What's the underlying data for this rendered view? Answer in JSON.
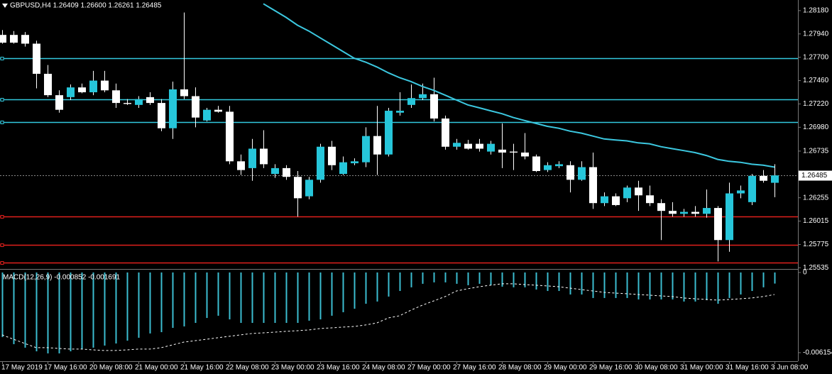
{
  "chart_data": [
    {
      "type": "candlestick",
      "title": "GBPUSD,H4  1.26409 1.26600 1.26261 1.26485",
      "categories": [
        "17 May 2019",
        null,
        null,
        null,
        "17 May 16:00",
        null,
        null,
        null,
        "20 May 08:00",
        null,
        null,
        null,
        "21 May 00:00",
        null,
        null,
        null,
        "21 May 16:00",
        null,
        null,
        null,
        "22 May 08:00",
        null,
        null,
        null,
        "23 May 00:00",
        null,
        null,
        null,
        "23 May 16:00",
        null,
        null,
        null,
        "24 May 08:00",
        null,
        null,
        null,
        "27 May 00:00",
        null,
        null,
        null,
        "27 May 16:00",
        null,
        null,
        null,
        "28 May 08:00",
        null,
        null,
        null,
        "29 May 00:00",
        null,
        null,
        null,
        "29 May 16:00",
        null,
        null,
        null,
        "30 May 08:00",
        null,
        null,
        null,
        "31 May 00:00",
        null,
        null,
        null,
        "31 May 16:00",
        null,
        null,
        null,
        "3 Jun 08:00"
      ],
      "open": [
        1.2793,
        1.2793,
        1.2793,
        1.2784,
        1.2753,
        1.2731,
        1.2729,
        1.2739,
        1.2734,
        1.2746,
        1.2736,
        1.2723,
        1.2721,
        1.2729,
        1.2723,
        1.2697,
        1.2737,
        1.273,
        1.2705,
        1.2716,
        1.2714,
        1.2663,
        1.2656,
        1.2676,
        1.265,
        1.2656,
        1.2647,
        1.2627,
        1.2644,
        1.2678,
        1.265,
        1.2661,
        1.2662,
        1.2689,
        1.267,
        1.2713,
        1.2721,
        1.2728,
        1.2732,
        1.2707,
        1.2678,
        1.2681,
        1.2681,
        1.2673,
        1.2675,
        1.2673,
        1.2672,
        1.2668,
        1.2654,
        1.2658,
        1.2659,
        1.2644,
        1.2657,
        1.262,
        1.2627,
        1.2625,
        1.2636,
        1.2628,
        1.262,
        1.2612,
        1.2609,
        1.2611,
        1.2609,
        1.2615,
        1.2582,
        1.263,
        1.2621,
        1.2648,
        1.26409
      ],
      "high": [
        1.2798,
        1.2797,
        1.2796,
        1.2787,
        1.2762,
        1.2736,
        1.2742,
        1.2743,
        1.2756,
        1.2756,
        1.2743,
        1.2727,
        1.273,
        1.2734,
        1.2727,
        1.2745,
        1.2816,
        1.2739,
        1.2718,
        1.272,
        1.272,
        1.267,
        1.2686,
        1.2695,
        1.266,
        1.2659,
        1.2653,
        1.2647,
        1.2681,
        1.2684,
        1.2668,
        1.2666,
        1.2698,
        1.272,
        1.2718,
        1.2734,
        1.2742,
        1.2743,
        1.2749,
        1.271,
        1.2686,
        1.2685,
        1.2686,
        1.2684,
        1.2702,
        1.2681,
        1.2692,
        1.267,
        1.2662,
        1.2663,
        1.2663,
        1.2663,
        1.2672,
        1.2631,
        1.263,
        1.2638,
        1.2643,
        1.2638,
        1.2624,
        1.2621,
        1.2614,
        1.2617,
        1.2634,
        1.2617,
        1.2641,
        1.2638,
        1.265,
        1.2654,
        1.266
      ],
      "low": [
        1.2784,
        1.2784,
        1.2781,
        1.2738,
        1.2729,
        1.2713,
        1.2726,
        1.2733,
        1.2731,
        1.2734,
        1.2718,
        1.2721,
        1.2718,
        1.2721,
        1.2694,
        1.2686,
        1.2727,
        1.2698,
        1.2704,
        1.2713,
        1.266,
        1.2649,
        1.2643,
        1.2656,
        1.2646,
        1.2644,
        1.2606,
        1.2624,
        1.2641,
        1.2654,
        1.2649,
        1.2659,
        1.2657,
        1.2649,
        1.2668,
        1.271,
        1.2718,
        1.2726,
        1.2704,
        1.2675,
        1.2675,
        1.2675,
        1.2673,
        1.267,
        1.2656,
        1.2654,
        1.2665,
        1.2652,
        1.2652,
        1.2656,
        1.2631,
        1.2643,
        1.2614,
        1.2617,
        1.2617,
        1.2621,
        1.2612,
        1.2617,
        1.2582,
        1.2606,
        1.2606,
        1.2606,
        1.2605,
        1.256,
        1.257,
        1.2625,
        1.2618,
        1.2641,
        1.26261
      ],
      "close": [
        1.2785,
        1.2785,
        1.2784,
        1.2753,
        1.2731,
        1.2716,
        1.2739,
        1.2734,
        1.2746,
        1.2736,
        1.2723,
        1.2722,
        1.2727,
        1.2723,
        1.2697,
        1.2737,
        1.273,
        1.2708,
        1.2716,
        1.2714,
        1.2663,
        1.2654,
        1.2676,
        1.266,
        1.2656,
        1.2647,
        1.2625,
        1.2644,
        1.2678,
        1.2659,
        1.2662,
        1.2663,
        1.2689,
        1.267,
        1.2715,
        1.2715,
        1.2728,
        1.2732,
        1.2707,
        1.2678,
        1.2682,
        1.2676,
        1.2676,
        1.2681,
        1.2672,
        1.2672,
        1.2668,
        1.2653,
        1.2659,
        1.266,
        1.2644,
        1.2657,
        1.262,
        1.2627,
        1.2618,
        1.2636,
        1.2628,
        1.262,
        1.2612,
        1.2609,
        1.2611,
        1.2609,
        1.2615,
        1.2582,
        1.263,
        1.2633,
        1.2648,
        1.2643,
        1.26485
      ],
      "up_color": "#26c6da",
      "down_color": "#ffffff",
      "wick_color": "#ffffff",
      "moving_average": {
        "color": "#3cc8e0",
        "values": [
          null,
          null,
          null,
          null,
          null,
          null,
          null,
          null,
          null,
          null,
          null,
          null,
          null,
          null,
          null,
          null,
          null,
          null,
          null,
          null,
          null,
          null,
          null,
          1.2825,
          1.2818,
          1.2811,
          1.2803,
          1.2797,
          1.279,
          1.2783,
          1.2776,
          1.2769,
          1.2765,
          1.276,
          1.2754,
          1.2749,
          1.2745,
          1.274,
          1.2736,
          1.2731,
          1.2726,
          1.2721,
          1.2718,
          1.2715,
          1.2712,
          1.2708,
          1.2705,
          1.2702,
          1.2699,
          1.2697,
          1.2694,
          1.2692,
          1.2689,
          1.2686,
          1.2685,
          1.2684,
          1.2682,
          1.2681,
          1.2678,
          1.2676,
          1.2674,
          1.2672,
          1.2669,
          1.2665,
          1.2663,
          1.2662,
          1.266,
          1.2659,
          1.2657
        ]
      },
      "levels": [
        {
          "value": 1.2769,
          "color": "#33c9dd"
        },
        {
          "value": 1.2727,
          "color": "#33c9dd"
        },
        {
          "value": 1.2703,
          "color": "#33c9dd"
        },
        {
          "value": 1.2606,
          "color": "#e0201c"
        },
        {
          "value": 1.2577,
          "color": "#e0201c"
        },
        {
          "value": 1.2559,
          "color": "#e0201c"
        }
      ],
      "last_price": 1.26485,
      "ylim": [
        1.2553,
        1.28289
      ],
      "yticks": [
        {
          "value": 1.2818,
          "label": "1.28180"
        },
        {
          "value": 1.2794,
          "label": "1.27940"
        },
        {
          "value": 1.277,
          "label": "1.27700"
        },
        {
          "value": 1.2746,
          "label": "1.27460"
        },
        {
          "value": 1.2722,
          "label": "1.27220"
        },
        {
          "value": 1.2698,
          "label": "1.26980"
        },
        {
          "value": 1.26735,
          "label": "1.26735"
        },
        {
          "value": 1.26255,
          "label": "1.26255"
        },
        {
          "value": 1.26015,
          "label": "1.26015"
        },
        {
          "value": 1.25775,
          "label": "1.25775"
        },
        {
          "value": 1.25535,
          "label": "1.25535"
        }
      ]
    },
    {
      "type": "macd",
      "title": "MACD(12,26,9) -0.000852 -0.001691",
      "histogram": {
        "color": "#3bbdd0",
        "values": [
          -0.00496,
          -0.0055,
          -0.00577,
          -0.00605,
          -0.00621,
          -0.00621,
          -0.00605,
          -0.00588,
          -0.00577,
          -0.00561,
          -0.00545,
          -0.00523,
          -0.00501,
          -0.00468,
          -0.00458,
          -0.00425,
          -0.00414,
          -0.00387,
          -0.00349,
          -0.00332,
          -0.0036,
          -0.00387,
          -0.00387,
          -0.00387,
          -0.00387,
          -0.00387,
          -0.00387,
          -0.0037,
          -0.0036,
          -0.00332,
          -0.00305,
          -0.00278,
          -0.0024,
          -0.00223,
          -0.00185,
          -0.00142,
          -0.00114,
          -0.00087,
          -0.00076,
          -0.00076,
          -0.00087,
          -0.00098,
          -0.00087,
          -0.00098,
          -0.00109,
          -0.00114,
          -0.00114,
          -0.00131,
          -0.00142,
          -0.00142,
          -0.00169,
          -0.00169,
          -0.00196,
          -0.00196,
          -0.00196,
          -0.00196,
          -0.00207,
          -0.00207,
          -0.00207,
          -0.00207,
          -0.00223,
          -0.00223,
          -0.00212,
          -0.0024,
          -0.00196,
          -0.00169,
          -0.00142,
          -0.00114,
          -0.000852
        ]
      },
      "signal": {
        "color": "#ffffff",
        "values": [
          -0.00479,
          -0.00512,
          -0.00545,
          -0.00577,
          -0.00577,
          -0.00583,
          -0.00588,
          -0.00588,
          -0.00594,
          -0.00599,
          -0.00599,
          -0.00594,
          -0.00588,
          -0.00588,
          -0.00577,
          -0.00556,
          -0.00534,
          -0.00523,
          -0.00512,
          -0.00501,
          -0.0049,
          -0.00479,
          -0.00468,
          -0.00463,
          -0.00458,
          -0.00452,
          -0.00447,
          -0.00441,
          -0.0043,
          -0.00425,
          -0.00419,
          -0.00414,
          -0.00403,
          -0.00387,
          -0.00349,
          -0.00332,
          -0.00289,
          -0.00251,
          -0.00218,
          -0.00185,
          -0.00142,
          -0.00125,
          -0.00109,
          -0.00098,
          -0.00087,
          -0.00087,
          -0.00093,
          -0.00098,
          -0.00103,
          -0.00109,
          -0.0012,
          -0.00131,
          -0.00142,
          -0.00153,
          -0.00158,
          -0.00163,
          -0.00169,
          -0.00174,
          -0.0018,
          -0.00185,
          -0.00196,
          -0.00202,
          -0.00207,
          -0.00212,
          -0.00207,
          -0.00202,
          -0.00196,
          -0.00185,
          -0.001691
        ]
      },
      "ylim": [
        -0.00681,
        0.00016
      ],
      "yticks": [
        0,
        -0.006154
      ]
    }
  ]
}
